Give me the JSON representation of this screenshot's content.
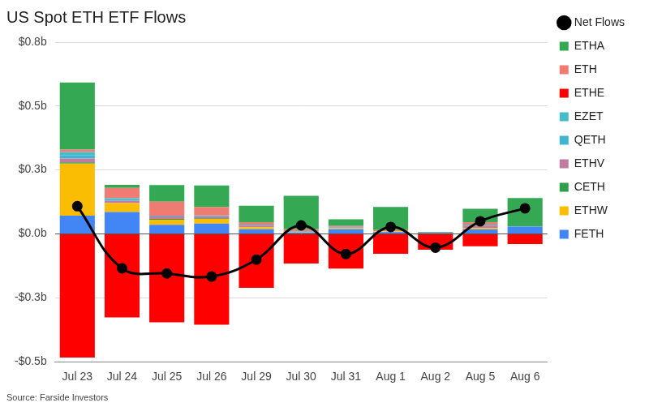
{
  "chart_data": {
    "type": "bar",
    "title": "US Spot ETH ETF Flows",
    "source": "Source: Farside Investors",
    "categories": [
      "Jul 23",
      "Jul 24",
      "Jul 25",
      "Jul 26",
      "Jul 29",
      "Jul 30",
      "Jul 31",
      "Aug 1",
      "Aug 2",
      "Aug 5",
      "Aug 6"
    ],
    "series": [
      {
        "name": "Net Flows",
        "type": "line",
        "color": "#000000",
        "marker": "circle",
        "line_style": "solid",
        "values": [
          0.108,
          -0.135,
          -0.155,
          -0.167,
          -0.101,
          0.033,
          -0.079,
          0.027,
          -0.054,
          0.049,
          0.1
        ]
      },
      {
        "name": "ETHA",
        "color": "#34a853",
        "values": [
          0.262,
          0.012,
          0.065,
          0.085,
          0.064,
          0.131,
          0.024,
          0.09,
          0.003,
          0.052,
          0.11
        ]
      },
      {
        "name": "ETH",
        "color": "#f07b72",
        "values": [
          0.01,
          0.04,
          0.055,
          0.032,
          0.01,
          0.008,
          0.004,
          0.005,
          0.001,
          0.01,
          0
        ]
      },
      {
        "name": "ETHE",
        "color": "#ff0000",
        "values": [
          -0.484,
          -0.327,
          -0.346,
          -0.356,
          -0.211,
          -0.116,
          -0.136,
          -0.078,
          -0.062,
          -0.049,
          -0.04
        ]
      },
      {
        "name": "EZET",
        "color": "#46bdc6",
        "values": [
          0.013,
          0.005,
          0.003,
          0.003,
          0.004,
          0.003,
          0.005,
          0,
          0,
          0.004,
          0.002
        ]
      },
      {
        "name": "QETH",
        "color": "#3fb5d1",
        "values": [
          0.012,
          0.005,
          0,
          0,
          0,
          0,
          0,
          0,
          0,
          0,
          0
        ]
      },
      {
        "name": "ETHV",
        "color": "#c27ba0",
        "values": [
          0.015,
          0.01,
          0.01,
          0.008,
          0.006,
          0,
          0.002,
          0,
          0,
          0.01,
          0
        ]
      },
      {
        "name": "CETH",
        "color": "#2e9e4b",
        "values": [
          0.005,
          0,
          0.003,
          0.003,
          0,
          0,
          0,
          0,
          0,
          0,
          0
        ]
      },
      {
        "name": "ETHW",
        "color": "#fbbc04",
        "values": [
          0.204,
          0.035,
          0.02,
          0.018,
          0.008,
          0.002,
          0.004,
          0.003,
          0,
          0.005,
          0
        ]
      },
      {
        "name": "FETH",
        "color": "#4285f4",
        "values": [
          0.071,
          0.085,
          0.035,
          0.04,
          0.018,
          0.005,
          0.018,
          0.007,
          0.004,
          0.017,
          0.028
        ]
      }
    ],
    "ylim": [
      -0.5,
      0.75
    ],
    "yticks": [
      {
        "value": -0.5,
        "label": "-$0.5b"
      },
      {
        "value": -0.25,
        "label": "-$0.3b"
      },
      {
        "value": 0,
        "label": "$0.0b"
      },
      {
        "value": 0.25,
        "label": "$0.3b"
      },
      {
        "value": 0.5,
        "label": "$0.5b"
      },
      {
        "value": 0.75,
        "label": "$0.8b"
      }
    ],
    "stacked": true,
    "grid": true,
    "legend": "right"
  }
}
